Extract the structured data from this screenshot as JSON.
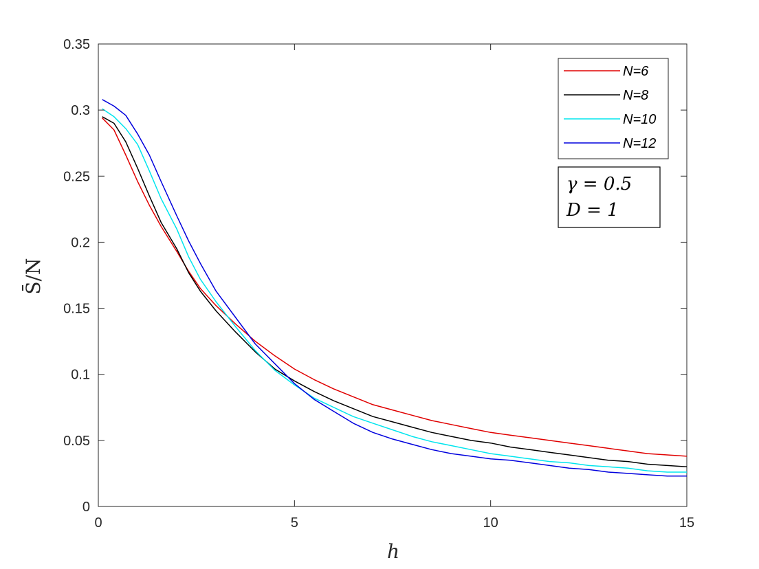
{
  "chart_data": {
    "type": "line",
    "title": "",
    "xlabel": "h",
    "ylabel": "S̄/N",
    "xlim": [
      0,
      15
    ],
    "ylim": [
      0,
      0.35
    ],
    "xticks": [
      0,
      5,
      10,
      15
    ],
    "xtick_labels": [
      "0",
      "5",
      "10",
      "15"
    ],
    "yticks": [
      0,
      0.05,
      0.1,
      0.15,
      0.2,
      0.25,
      0.3,
      0.35
    ],
    "ytick_labels": [
      "0",
      "0.05",
      "0.1",
      "0.15",
      "0.2",
      "0.25",
      "0.3",
      "0.35"
    ],
    "grid": false,
    "legend_position": "top-right",
    "x": [
      0.1,
      0.4,
      0.7,
      1.0,
      1.3,
      1.6,
      2.0,
      2.3,
      2.6,
      3.0,
      3.5,
      4.0,
      4.5,
      5.0,
      5.5,
      6.0,
      6.5,
      7.0,
      7.5,
      8.0,
      8.5,
      9.0,
      9.5,
      10.0,
      10.5,
      11.0,
      11.5,
      12.0,
      12.5,
      13.0,
      13.5,
      14.0,
      14.5,
      15.0
    ],
    "series": [
      {
        "name": "N=6",
        "color": "#e00000",
        "values": [
          0.294,
          0.285,
          0.266,
          0.246,
          0.228,
          0.212,
          0.193,
          0.178,
          0.165,
          0.152,
          0.138,
          0.125,
          0.114,
          0.104,
          0.096,
          0.089,
          0.083,
          0.077,
          0.073,
          0.069,
          0.065,
          0.062,
          0.059,
          0.056,
          0.054,
          0.052,
          0.05,
          0.048,
          0.046,
          0.044,
          0.042,
          0.04,
          0.039,
          0.038
        ]
      },
      {
        "name": "N=8",
        "color": "#000000",
        "values": [
          0.295,
          0.29,
          0.276,
          0.256,
          0.235,
          0.215,
          0.195,
          0.177,
          0.163,
          0.148,
          0.132,
          0.117,
          0.104,
          0.095,
          0.087,
          0.08,
          0.074,
          0.068,
          0.064,
          0.06,
          0.056,
          0.053,
          0.05,
          0.048,
          0.045,
          0.043,
          0.041,
          0.039,
          0.037,
          0.035,
          0.034,
          0.032,
          0.031,
          0.03
        ]
      },
      {
        "name": "N=10",
        "color": "#00e5ee",
        "values": [
          0.301,
          0.295,
          0.286,
          0.274,
          0.254,
          0.233,
          0.21,
          0.189,
          0.172,
          0.155,
          0.136,
          0.118,
          0.103,
          0.092,
          0.082,
          0.075,
          0.068,
          0.063,
          0.058,
          0.053,
          0.049,
          0.046,
          0.043,
          0.04,
          0.038,
          0.036,
          0.034,
          0.033,
          0.031,
          0.03,
          0.029,
          0.027,
          0.026,
          0.026
        ]
      },
      {
        "name": "N=12",
        "color": "#0000dd",
        "values": [
          0.308,
          0.303,
          0.296,
          0.282,
          0.266,
          0.246,
          0.22,
          0.201,
          0.184,
          0.163,
          0.143,
          0.123,
          0.108,
          0.093,
          0.081,
          0.072,
          0.063,
          0.056,
          0.051,
          0.047,
          0.043,
          0.04,
          0.038,
          0.036,
          0.035,
          0.033,
          0.031,
          0.029,
          0.028,
          0.026,
          0.025,
          0.024,
          0.023,
          0.023
        ]
      }
    ],
    "annotation": {
      "lines": [
        "γ = 0.5",
        "D = 1"
      ]
    }
  }
}
